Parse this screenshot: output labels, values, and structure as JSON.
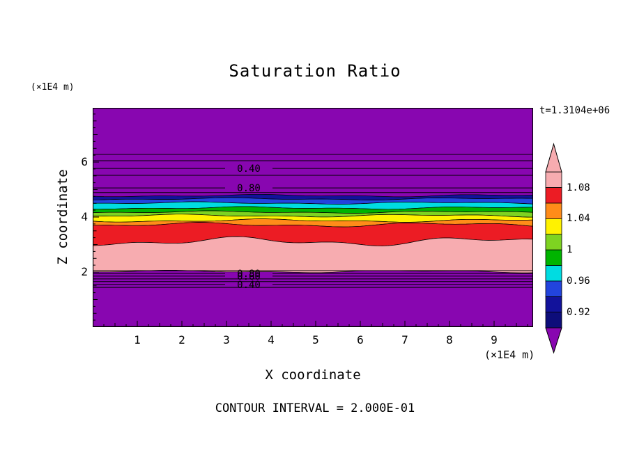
{
  "figure": {
    "title": "Saturation Ratio",
    "time_label": "t=1.3104e+06",
    "y_axis_unit": "(×1E4 m)",
    "x_axis_unit": "(×1E4 m)",
    "y_axis_label": "Z coordinate",
    "x_axis_label": "X coordinate",
    "footer": "CONTOUR INTERVAL = 2.000E-01"
  },
  "chart_data": {
    "type": "heatmap",
    "title": "Saturation Ratio",
    "xlabel": "X coordinate",
    "ylabel": "Z coordinate",
    "x_unit": "(×1E4 m)",
    "y_unit": "(×1E4 m)",
    "time_annotation": "t=1.3104e+06",
    "contour_interval": "2.000E-01",
    "xlim": [
      0,
      9.875
    ],
    "ylim": [
      0,
      7.97
    ],
    "x_ticks": [
      1,
      2,
      3,
      4,
      5,
      6,
      7,
      8,
      9
    ],
    "y_ticks": [
      2,
      4,
      6
    ],
    "grid": false,
    "legend_position": "right-colorbar",
    "background_value_color": "#8806B0",
    "colorbar": {
      "tick_labels": [
        "1.08",
        "1.04",
        "1",
        "0.96",
        "0.92"
      ],
      "cell_colors": [
        "#F7ACB0",
        "#EC1C24",
        "#FF8C19",
        "#FFF200",
        "#7ED321",
        "#00B400",
        "#00DCE1",
        "#2244DD",
        "#12129B",
        "#0D0D7A"
      ],
      "arrow_top_color": "#F7ACB0",
      "arrow_bottom_color": "#8806B0"
    },
    "band_edges": [
      {
        "z": 4.78,
        "amp": 1.2,
        "phase": 0.3
      },
      {
        "z": 4.66,
        "amp": 1.2,
        "phase": 1.1
      },
      {
        "z": 4.51,
        "amp": 1.2,
        "phase": 2.0
      },
      {
        "z": 4.33,
        "amp": 1.3,
        "phase": 0.7
      },
      {
        "z": 4.18,
        "amp": 1.2,
        "phase": 1.6
      },
      {
        "z": 4.05,
        "amp": 1.4,
        "phase": 2.4
      },
      {
        "z": 3.87,
        "amp": 1.6,
        "phase": 0.2
      },
      {
        "z": 3.72,
        "amp": 2.2,
        "phase": 1.9
      },
      {
        "z": 3.11,
        "amp": 4.5,
        "phase": 0.9
      },
      {
        "z": 2.02,
        "amp": 1.2,
        "phase": 2.7
      }
    ],
    "bands": [
      {
        "name": "navy",
        "color": "#12129B"
      },
      {
        "name": "blue",
        "color": "#2244DD"
      },
      {
        "name": "cyan",
        "color": "#00DCE1"
      },
      {
        "name": "green",
        "color": "#00B400"
      },
      {
        "name": "light-green",
        "color": "#7ED321"
      },
      {
        "name": "yellow",
        "color": "#FFF200"
      },
      {
        "name": "orange",
        "color": "#FF8C19"
      },
      {
        "name": "red",
        "color": "#EC1C24"
      },
      {
        "name": "pink",
        "color": "#F7ACB0"
      }
    ],
    "contour_label_x": 3.5,
    "contour_lines": [
      {
        "z": 6.28
      },
      {
        "z": 6.05
      },
      {
        "z": 5.77,
        "label": "0.40"
      },
      {
        "z": 5.52
      },
      {
        "z": 5.06,
        "label": "0.80"
      },
      {
        "z": 4.89
      },
      {
        "z": 2.05
      },
      {
        "z": 1.95,
        "label": "0.80"
      },
      {
        "z": 1.85,
        "label": "0.60"
      },
      {
        "z": 1.75
      },
      {
        "z": 1.65
      },
      {
        "z": 1.55,
        "label": "0.40"
      },
      {
        "z": 1.44
      }
    ]
  }
}
